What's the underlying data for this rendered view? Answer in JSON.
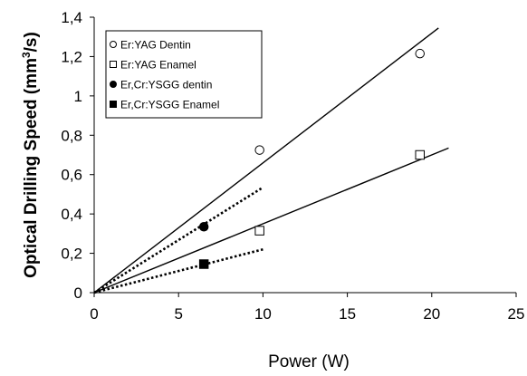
{
  "chart_data": {
    "type": "scatter",
    "title": "",
    "xlabel": "Power (W)",
    "ylabel": "Optical Drilling Speed (mm³/s)",
    "ylabel_parts": {
      "before": "Optical Drilling Speed (mm",
      "sup": "3",
      "after": "/s)"
    },
    "xlim": [
      0,
      25
    ],
    "ylim": [
      0,
      1.4
    ],
    "xticks": [
      "0",
      "5",
      "10",
      "15",
      "20",
      "25"
    ],
    "yticks": [
      "0",
      "0,2",
      "0,4",
      "0,6",
      "0,8",
      "1",
      "1,2",
      "1,4"
    ],
    "grid": false,
    "legend_position": "top-left",
    "series": [
      {
        "name": "Er:YAG Dentin",
        "marker": "circle-open",
        "points": [
          [
            9.8,
            0.725
          ],
          [
            19.3,
            1.215
          ]
        ],
        "trend": {
          "x": [
            0,
            20.4
          ],
          "y": [
            0,
            1.345
          ],
          "style": "solid"
        }
      },
      {
        "name": "Er:YAG Enamel",
        "marker": "square-open",
        "points": [
          [
            9.8,
            0.315
          ],
          [
            19.3,
            0.7
          ]
        ],
        "trend": {
          "x": [
            0,
            21.0
          ],
          "y": [
            0,
            0.735
          ],
          "style": "solid"
        }
      },
      {
        "name": "Er,Cr:YSGG dentin",
        "marker": "circle-filled",
        "points": [
          [
            6.5,
            0.335
          ]
        ],
        "trend": {
          "x": [
            0,
            10.0
          ],
          "y": [
            0,
            0.535
          ],
          "style": "dotted"
        }
      },
      {
        "name": "Er,Cr:YSGG Enamel",
        "marker": "square-filled",
        "points": [
          [
            6.5,
            0.145
          ]
        ],
        "trend": {
          "x": [
            0,
            10.0
          ],
          "y": [
            0,
            0.22
          ],
          "style": "dotted"
        }
      }
    ]
  }
}
